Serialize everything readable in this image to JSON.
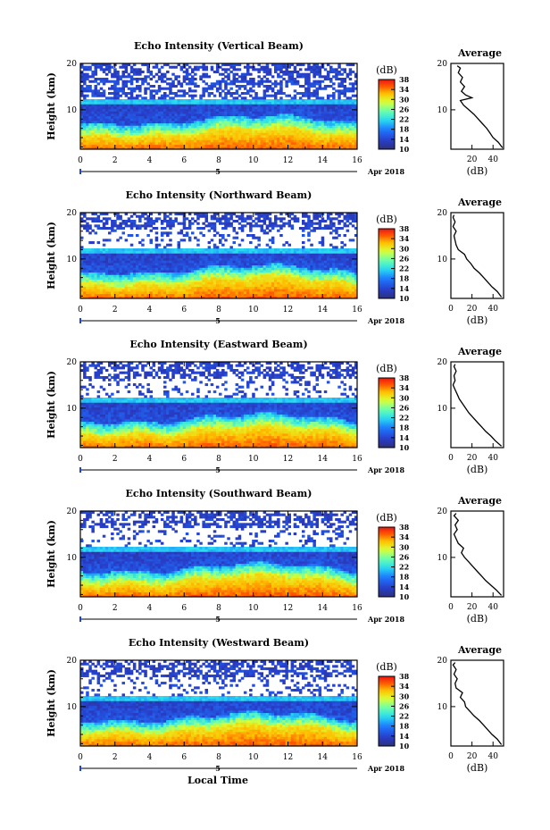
{
  "figure": {
    "xlabel": "Local Time",
    "month_label": "Apr 2018",
    "day_marker": "5",
    "colorbar_unit": "(dB)",
    "colorbar_ticks": [
      "10",
      "14",
      "18",
      "22",
      "26",
      "30",
      "34",
      "38"
    ],
    "avg_title": "Average",
    "avg_xlabel": "(dB)"
  },
  "chart_data": [
    {
      "type": "heatmap",
      "title": "Echo Intensity (Vertical Beam)",
      "ylabel": "Height (km)",
      "xlim": [
        0,
        16
      ],
      "ylim": [
        1.5,
        20
      ],
      "xticks": [
        0,
        2,
        4,
        6,
        8,
        10,
        12,
        14,
        16
      ],
      "xtick_labels": [
        "0",
        "2",
        "4",
        "6",
        "8",
        "10",
        "12",
        "14",
        "16"
      ],
      "yticks": [
        10,
        20
      ],
      "colorbar_range": [
        10,
        38
      ],
      "average_profile": {
        "xlim": [
          0,
          50
        ],
        "xticks": [
          20,
          40
        ],
        "xtick_labels": [
          "20",
          "40"
        ],
        "yticks": [
          10,
          20
        ],
        "heights": [
          1.8,
          3,
          4,
          5,
          6,
          7,
          8,
          9,
          10,
          11,
          12,
          12.6,
          13.2,
          14,
          15,
          16,
          17,
          18,
          19,
          19.5
        ],
        "values": [
          49,
          45,
          40,
          37,
          34,
          30,
          26,
          22,
          17,
          12,
          9,
          20,
          14,
          10,
          13,
          9,
          11,
          7,
          9,
          6
        ]
      }
    },
    {
      "type": "heatmap",
      "title": "Echo Intensity (Northward Beam)",
      "ylabel": "Height (km)",
      "xlim": [
        0,
        16
      ],
      "ylim": [
        1.5,
        20
      ],
      "xticks": [
        0,
        2,
        4,
        6,
        8,
        10,
        12,
        14,
        16
      ],
      "xtick_labels": [
        "0",
        "2",
        "4",
        "6",
        "8",
        "10",
        "12",
        "14",
        "16"
      ],
      "yticks": [
        10,
        20
      ],
      "colorbar_range": [
        10,
        38
      ],
      "average_profile": {
        "xlim": [
          0,
          50
        ],
        "xticks": [
          0,
          20,
          40
        ],
        "xtick_labels": [
          "0",
          "20",
          "40"
        ],
        "yticks": [
          10,
          20
        ],
        "heights": [
          1.8,
          3,
          4,
          5,
          6,
          7,
          8,
          9,
          10,
          11,
          12,
          13,
          14,
          15,
          16,
          17,
          18,
          19,
          19.5
        ],
        "values": [
          48,
          44,
          39,
          35,
          31,
          27,
          22,
          19,
          15,
          13,
          7,
          5,
          4,
          3,
          5,
          2,
          4,
          2,
          3
        ]
      }
    },
    {
      "type": "heatmap",
      "title": "Echo Intensity (Eastward Beam)",
      "ylabel": "Height (km)",
      "xlim": [
        0,
        16
      ],
      "ylim": [
        1.5,
        20
      ],
      "xticks": [
        0,
        2,
        4,
        6,
        8,
        10,
        12,
        14,
        16
      ],
      "xtick_labels": [
        "0",
        "2",
        "4",
        "6",
        "8",
        "10",
        "12",
        "14",
        "16"
      ],
      "yticks": [
        10,
        20
      ],
      "colorbar_range": [
        10,
        38
      ],
      "average_profile": {
        "xlim": [
          0,
          50
        ],
        "xticks": [
          0,
          20,
          40
        ],
        "xtick_labels": [
          "0",
          "20",
          "40"
        ],
        "yticks": [
          10,
          20
        ],
        "heights": [
          1.8,
          3,
          4,
          5,
          6,
          7,
          8,
          9,
          10,
          11,
          12,
          13,
          14,
          15,
          16,
          17,
          18,
          19,
          19.5
        ],
        "values": [
          48,
          42,
          38,
          33,
          29,
          25,
          21,
          17,
          14,
          11,
          8,
          6,
          4,
          2,
          4,
          3,
          5,
          3,
          4
        ]
      }
    },
    {
      "type": "heatmap",
      "title": "Echo Intensity (Southward Beam)",
      "ylabel": "Height (km)",
      "xlim": [
        0,
        16
      ],
      "ylim": [
        1.5,
        20
      ],
      "xticks": [
        0,
        2,
        4,
        6,
        8,
        10,
        12,
        14,
        16
      ],
      "xtick_labels": [
        "0",
        "2",
        "4",
        "6",
        "8",
        "10",
        "12",
        "14",
        "16"
      ],
      "yticks": [
        10,
        20
      ],
      "colorbar_range": [
        10,
        38
      ],
      "average_profile": {
        "xlim": [
          0,
          50
        ],
        "xticks": [
          0,
          20,
          40
        ],
        "xtick_labels": [
          "0",
          "20",
          "40"
        ],
        "yticks": [
          10,
          20
        ],
        "heights": [
          1.8,
          3,
          4,
          5,
          6,
          7,
          8,
          9,
          10,
          11,
          12,
          13,
          14,
          15,
          16,
          17,
          18,
          19,
          19.5
        ],
        "values": [
          48,
          43,
          38,
          33,
          29,
          25,
          21,
          17,
          13,
          10,
          12,
          7,
          5,
          3,
          6,
          4,
          7,
          3,
          5
        ]
      }
    },
    {
      "type": "heatmap",
      "title": "Echo Intensity (Westward Beam)",
      "ylabel": "Height (km)",
      "xlim": [
        0,
        16
      ],
      "ylim": [
        1.5,
        20
      ],
      "xticks": [
        0,
        2,
        4,
        6,
        8,
        10,
        12,
        14,
        16
      ],
      "xtick_labels": [
        "0",
        "2",
        "4",
        "6",
        "8",
        "10",
        "12",
        "14",
        "16"
      ],
      "yticks": [
        10,
        20
      ],
      "colorbar_range": [
        10,
        38
      ],
      "average_profile": {
        "xlim": [
          0,
          50
        ],
        "xticks": [
          0,
          20,
          40
        ],
        "xtick_labels": [
          "0",
          "20",
          "40"
        ],
        "yticks": [
          10,
          20
        ],
        "heights": [
          1.8,
          3,
          4,
          5,
          6,
          7,
          8,
          9,
          10,
          11,
          12,
          13,
          14,
          15,
          16,
          17,
          18,
          19,
          19.5
        ],
        "values": [
          48,
          44,
          39,
          35,
          31,
          27,
          22,
          18,
          14,
          13,
          9,
          11,
          5,
          4,
          6,
          3,
          5,
          2,
          4
        ]
      }
    }
  ]
}
